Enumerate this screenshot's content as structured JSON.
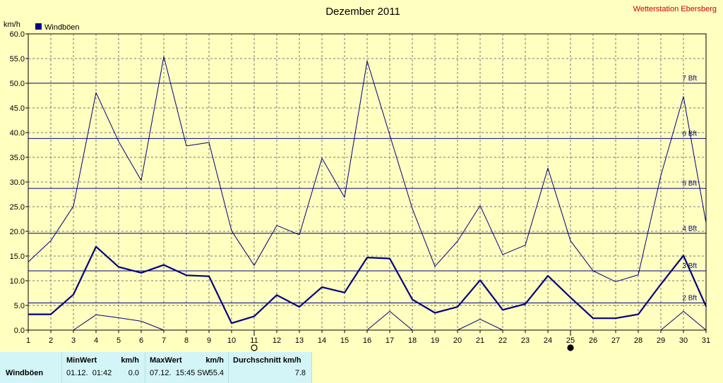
{
  "header": {
    "title": "Dezember 2011",
    "station": "Wetterstation Ebersberg"
  },
  "chart_data": {
    "type": "line",
    "title": "Dezember 2011",
    "ylabel": "km/h",
    "xlabel": "",
    "ylim": [
      0,
      60
    ],
    "y_ticks": [
      "0.0",
      "5.0",
      "10.0",
      "15.0",
      "20.0",
      "25.0",
      "30.0",
      "35.0",
      "40.0",
      "45.0",
      "50.0",
      "55.0",
      "60.0"
    ],
    "x_ticks": [
      "1",
      "2",
      "3",
      "4",
      "5",
      "6",
      "7",
      "8",
      "9",
      "10",
      "11",
      "12",
      "13",
      "14",
      "15",
      "16",
      "17",
      "18",
      "19",
      "20",
      "21",
      "22",
      "23",
      "24",
      "25",
      "26",
      "27",
      "28",
      "29",
      "30",
      "31"
    ],
    "grid": true,
    "legend": {
      "placement": "top-left",
      "label": "Windböen",
      "color": "#000080"
    },
    "series": [
      {
        "role": "avg",
        "color": "#000080",
        "values": [
          3.2,
          3.2,
          7.2,
          16.9,
          12.8,
          11.6,
          13.2,
          11.1,
          10.9,
          1.4,
          2.8,
          7.1,
          4.7,
          8.7,
          7.6,
          14.7,
          14.5,
          6.2,
          3.5,
          4.7,
          10.1,
          4.1,
          5.3,
          11.0,
          6.6,
          2.4,
          2.4,
          3.2,
          9.3,
          15.1,
          4.8
        ]
      },
      {
        "role": "max",
        "color": "#000080",
        "values": [
          13.8,
          18.1,
          25.1,
          48.1,
          38.2,
          30.3,
          55.4,
          37.3,
          38.0,
          20.1,
          13.1,
          21.2,
          19.3,
          34.8,
          26.9,
          54.5,
          39.5,
          24.6,
          12.9,
          18.0,
          25.2,
          15.3,
          17.2,
          32.8,
          18.1,
          12.0,
          9.8,
          11.2,
          31.3,
          47.3,
          21.7
        ]
      },
      {
        "role": "min",
        "color": "#000080",
        "values": [
          null,
          null,
          0.0,
          3.1,
          2.5,
          1.8,
          0.0,
          null,
          null,
          null,
          null,
          null,
          null,
          null,
          null,
          0.0,
          3.8,
          0.0,
          null,
          0.0,
          2.2,
          0.0,
          null,
          null,
          null,
          null,
          null,
          null,
          0.0,
          3.8,
          0.0
        ]
      }
    ],
    "reference_lines": [
      {
        "value": 5.5,
        "label": "2 Bft"
      },
      {
        "value": 12.0,
        "label": "3 Bft"
      },
      {
        "value": 19.6,
        "label": "4 Bft"
      },
      {
        "value": 28.7,
        "label": "5 Bft"
      },
      {
        "value": 38.8,
        "label": "6 Bft"
      },
      {
        "value": 50.0,
        "label": "7 Bft"
      }
    ],
    "markers": [
      {
        "day": 11,
        "symbol": "open-circle"
      },
      {
        "day": 25,
        "symbol": "filled-circle"
      }
    ]
  },
  "stats": {
    "row_label": "Windböen",
    "min": {
      "header": "MinWert",
      "unit": "km/h",
      "when": "01.12.  01:42",
      "value": "0.0"
    },
    "max": {
      "header": "MaxWert",
      "unit": "km/h",
      "when": "07.12.  15:45",
      "dir": "SW",
      "value": "55.4"
    },
    "avg": {
      "header": "Durchschnitt km/h",
      "value": "7.8"
    }
  }
}
